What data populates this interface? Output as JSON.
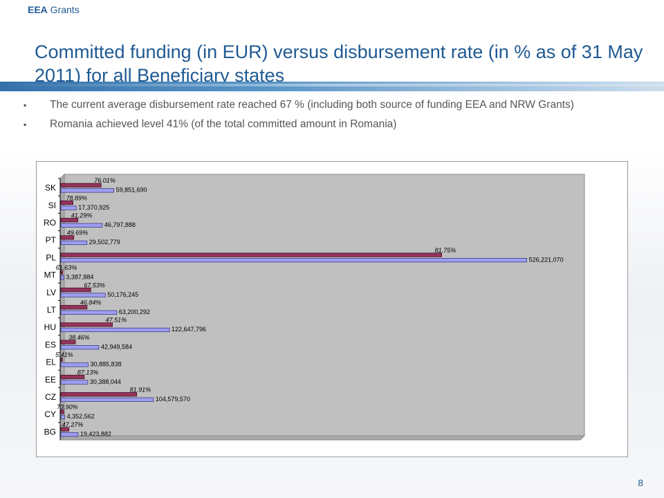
{
  "header": {
    "brand_bold": "EEA",
    "brand_rest": " Grants",
    "title": "Committed funding (in EUR) versus disbursement rate (in % as of 31 May 2011) for all Beneficiary states"
  },
  "bullets": [
    {
      "mark": "▪",
      "text": "The current average disbursement rate reached 67 % (including both source of funding EEA and NRW Grants)"
    },
    {
      "mark": "▪",
      "text": "Romania achieved level 41% (of the total committed amount in Romania)"
    }
  ],
  "footer": {
    "page_number": "8"
  },
  "colors": {
    "rate_bar": "#93335c",
    "amount_bar": "#9d9df0",
    "plot_bg": "#c0c0c0",
    "accent": "#1f5a93"
  },
  "chart_data": {
    "type": "bar",
    "orientation": "horizontal",
    "title": "",
    "xlabel": "",
    "ylabel": "",
    "xlim": [
      0,
      600000000
    ],
    "categories": [
      "SK",
      "SI",
      "RO",
      "PT",
      "PL",
      "MT",
      "LV",
      "LT",
      "HU",
      "ES",
      "EL",
      "EE",
      "CZ",
      "CY",
      "BG"
    ],
    "series": [
      {
        "key": "rate",
        "values": [
          76.01,
          78.89,
          41.29,
          49.69,
          81.75,
          61.63,
          67.53,
          46.84,
          47.51,
          38.46,
          5.41,
          87.13,
          81.91,
          73.9,
          47.27
        ],
        "labels": [
          "76.01%",
          "78.89%",
          "41.29%",
          "49.69%",
          "81.75%",
          "61.63%",
          "67.53%",
          "46.84%",
          "47.51%",
          "38.46%",
          "5.41%",
          "87.13%",
          "81.91%",
          "73.90%",
          "47.27%"
        ]
      },
      {
        "key": "amount",
        "values": [
          59851690,
          17370925,
          46797888,
          29502779,
          526221070,
          3387884,
          50176245,
          63200292,
          122647796,
          42949584,
          30885838,
          30388044,
          104579570,
          4352562,
          19423882
        ],
        "labels": [
          "59,851,690",
          "17,370,925",
          "46,797,888",
          "29,502,779",
          "526,221,070",
          "3,387,884",
          "50,176,245",
          "63,200,292",
          "122,647,796",
          "42,949,584",
          "30,885,838",
          "30,388,044",
          "104,579,570",
          "4,352,562",
          "19,423,882"
        ]
      }
    ]
  }
}
